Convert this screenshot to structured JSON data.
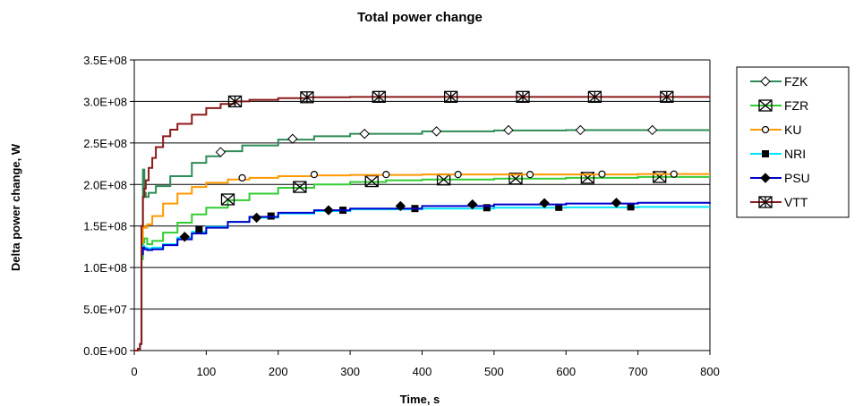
{
  "chart_data": {
    "type": "line",
    "title": "Total power change",
    "xlabel": "Time, s",
    "ylabel": "Delta power change, W",
    "xlim": [
      0,
      800
    ],
    "ylim": [
      0,
      350000000
    ],
    "x_ticks": [
      0,
      100,
      200,
      300,
      400,
      500,
      600,
      700,
      800
    ],
    "x_tick_labels": [
      "0",
      "100",
      "200",
      "300",
      "400",
      "500",
      "600",
      "700",
      "800"
    ],
    "y_ticks": [
      0,
      50000000,
      100000000,
      150000000,
      200000000,
      250000000,
      300000000,
      350000000
    ],
    "y_tick_labels": [
      "0.0E+00",
      "5.0E+07",
      "1.0E+08",
      "1.5E+08",
      "2.0E+08",
      "2.5E+08",
      "3.0E+08",
      "3.5E+08"
    ],
    "grid": "horizontal",
    "legend_position": "right",
    "series": [
      {
        "name": "FZK",
        "color": "#2E8B57",
        "marker": "diamond-open",
        "x": [
          0,
          5,
          8,
          10,
          12,
          14,
          16,
          20,
          30,
          50,
          80,
          100,
          120,
          150,
          200,
          250,
          300,
          400,
          500,
          600,
          700,
          800
        ],
        "y": [
          0,
          2000000,
          8000000,
          150000000,
          218000000,
          190000000,
          185000000,
          190000000,
          198000000,
          210000000,
          226000000,
          234000000,
          240000000,
          247000000,
          254000000,
          258000000,
          261000000,
          264000000,
          265000000,
          265500000,
          265500000,
          265500000
        ],
        "marker_x": [
          120,
          220,
          320,
          420,
          520,
          620,
          720
        ],
        "marker_y": [
          239000000,
          255000000,
          261000000,
          264000000,
          265500000,
          265500000,
          265500000
        ]
      },
      {
        "name": "FZR",
        "color": "#33CC33",
        "marker": "x",
        "x": [
          0,
          5,
          8,
          10,
          12,
          14,
          18,
          25,
          40,
          60,
          80,
          100,
          130,
          160,
          200,
          250,
          300,
          350,
          400,
          500,
          600,
          700,
          800
        ],
        "y": [
          0,
          2000000,
          8000000,
          110000000,
          130000000,
          135000000,
          128000000,
          132000000,
          142000000,
          154000000,
          164000000,
          172000000,
          181000000,
          189000000,
          196000000,
          200000000,
          203000000,
          205000000,
          206000000,
          207000000,
          208000000,
          209000000,
          209500000
        ],
        "marker_x": [
          130,
          230,
          330,
          430,
          530,
          630,
          730
        ],
        "marker_y": [
          182000000,
          197000000,
          204000000,
          206000000,
          207000000,
          208000000,
          209000000
        ]
      },
      {
        "name": "KU",
        "color": "#FF9900",
        "marker": "circle-open",
        "x": [
          0,
          5,
          8,
          10,
          12,
          14,
          18,
          25,
          40,
          60,
          80,
          100,
          130,
          160,
          200,
          250,
          300,
          400,
          500,
          600,
          700,
          800
        ],
        "y": [
          0,
          2000000,
          8000000,
          130000000,
          150000000,
          148000000,
          152000000,
          162000000,
          177000000,
          189000000,
          197000000,
          202000000,
          206000000,
          208000000,
          210000000,
          211000000,
          211500000,
          212000000,
          212000000,
          212000000,
          212500000,
          212500000
        ],
        "marker_x": [
          150,
          250,
          350,
          450,
          550,
          650,
          750
        ],
        "marker_y": [
          208000000,
          212000000,
          212000000,
          212000000,
          212000000,
          212500000,
          212500000
        ]
      },
      {
        "name": "NRI",
        "color": "#00E5FF",
        "marker": "square",
        "x": [
          0,
          5,
          8,
          10,
          12,
          14,
          18,
          25,
          40,
          60,
          80,
          100,
          130,
          160,
          200,
          250,
          300,
          400,
          500,
          600,
          700,
          800
        ],
        "y": [
          0,
          2000000,
          8000000,
          118000000,
          126000000,
          124000000,
          123000000,
          124000000,
          128000000,
          136000000,
          143000000,
          149000000,
          155000000,
          160000000,
          165000000,
          168000000,
          170000000,
          171000000,
          172000000,
          172500000,
          173000000,
          173000000
        ],
        "marker_x": [
          90,
          190,
          290,
          390,
          490,
          590,
          690
        ],
        "marker_y": [
          146000000,
          162000000,
          169000000,
          171000000,
          172000000,
          172500000,
          173000000
        ]
      },
      {
        "name": "PSU",
        "color": "#0000CC",
        "marker": "diamond",
        "x": [
          0,
          5,
          8,
          10,
          12,
          14,
          18,
          25,
          40,
          60,
          80,
          100,
          130,
          160,
          200,
          250,
          300,
          400,
          500,
          600,
          700,
          800
        ],
        "y": [
          0,
          2000000,
          8000000,
          116000000,
          124000000,
          122000000,
          121000000,
          122000000,
          127000000,
          134000000,
          141000000,
          148000000,
          155000000,
          161000000,
          166000000,
          169000000,
          171000000,
          174000000,
          176000000,
          177000000,
          178000000,
          178500000
        ],
        "marker_x": [
          70,
          170,
          270,
          370,
          470,
          570,
          670
        ],
        "marker_y": [
          137000000,
          160000000,
          169000000,
          174000000,
          176000000,
          177500000,
          178000000
        ]
      },
      {
        "name": "VTT",
        "color": "#8B1A1A",
        "marker": "asterisk",
        "x": [
          0,
          5,
          8,
          10,
          12,
          14,
          16,
          20,
          25,
          30,
          40,
          50,
          60,
          80,
          100,
          120,
          140,
          160,
          200,
          240,
          300,
          400,
          500,
          600,
          700,
          800
        ],
        "y": [
          0,
          2000000,
          8000000,
          150000000,
          185000000,
          195000000,
          205000000,
          220000000,
          232000000,
          245000000,
          258000000,
          266000000,
          273000000,
          284000000,
          292000000,
          297000000,
          300000000,
          302000000,
          304000000,
          305000000,
          305500000,
          305500000,
          305500000,
          305500000,
          305500000,
          305500000
        ],
        "marker_x": [
          140,
          240,
          340,
          440,
          540,
          640,
          740
        ],
        "marker_y": [
          300000000,
          305000000,
          305500000,
          305500000,
          305500000,
          305500000,
          305500000
        ]
      }
    ]
  }
}
